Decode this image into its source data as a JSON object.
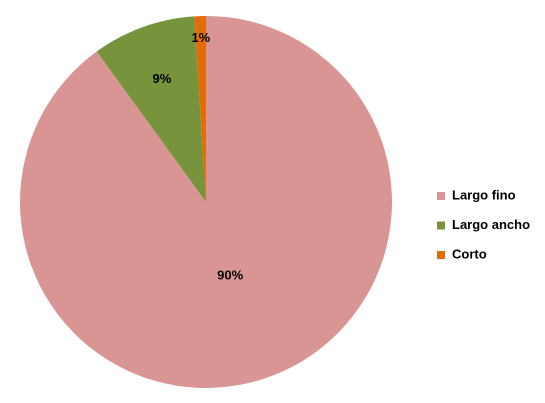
{
  "chart_data": {
    "type": "pie",
    "categories": [
      "Largo fino",
      "Largo ancho",
      "Corto"
    ],
    "values": [
      90,
      9,
      1
    ],
    "value_labels": [
      "90%",
      "9%",
      "1%"
    ],
    "colors": [
      "#d99594",
      "#77933c",
      "#e36c09"
    ],
    "legend": "right"
  }
}
